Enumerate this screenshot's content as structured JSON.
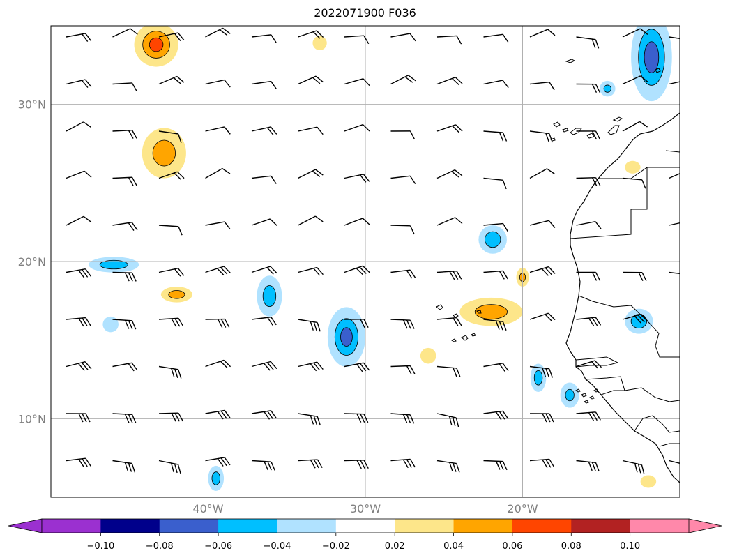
{
  "title": "2022071900 F036",
  "colors": {
    "grid": "#b0b0b0",
    "frame": "#000000",
    "coast": "#000000",
    "barb": "#000000",
    "label": "#808080"
  },
  "map": {
    "lon_range": [
      -50,
      -10
    ],
    "lat_range": [
      5,
      35
    ],
    "lat_ticks": [
      {
        "value": 10,
        "label": "10°N"
      },
      {
        "value": 20,
        "label": "20°N"
      },
      {
        "value": 30,
        "label": "30°N"
      }
    ],
    "lon_ticks": [
      {
        "value": -40,
        "label": "40°W"
      },
      {
        "value": -30,
        "label": "30°W"
      },
      {
        "value": -20,
        "label": "20°W"
      }
    ]
  },
  "colorbar": {
    "bounds": [
      -0.12,
      -0.1,
      -0.08,
      -0.06,
      -0.04,
      -0.02,
      0.02,
      0.04,
      0.06,
      0.08,
      0.1,
      0.12
    ],
    "colors": [
      "#9b30d0",
      "#00008b",
      "#3a5fcd",
      "#00bfff",
      "#b0e2ff",
      "#ffffff",
      "#fde68a",
      "#ffa500",
      "#ff4500",
      "#b22222",
      "#ff88aa"
    ],
    "extend": "both",
    "tick_values": [
      -0.1,
      -0.08,
      -0.06,
      -0.04,
      -0.02,
      0.02,
      0.04,
      0.06,
      0.08,
      0.1
    ],
    "tick_labels": [
      "−0.10",
      "−0.08",
      "−0.06",
      "−0.04",
      "−0.02",
      "0.02",
      "0.04",
      "0.06",
      "0.08",
      "0.10"
    ]
  },
  "chart_data": {
    "type": "heatmap",
    "title": "2022071900 F036",
    "contour_features": [
      {
        "lon": -43.3,
        "lat": 33.8,
        "sx": 1.4,
        "sy": 1.4,
        "level": 0.065
      },
      {
        "lon": -42.8,
        "lat": 26.9,
        "sx": 1.4,
        "sy": 1.6,
        "level": 0.05
      },
      {
        "lon": -42.0,
        "lat": 17.9,
        "sx": 1.0,
        "sy": 0.5,
        "level": 0.05
      },
      {
        "lon": -32.9,
        "lat": 33.9,
        "sx": 0.45,
        "sy": 0.45,
        "level": 0.04
      },
      {
        "lon": -22.0,
        "lat": 16.8,
        "sx": 2.0,
        "sy": 0.9,
        "level": 0.05
      },
      {
        "lon": -26.0,
        "lat": 14.0,
        "sx": 0.5,
        "sy": 0.5,
        "level": 0.03
      },
      {
        "lon": -20.0,
        "lat": 19.0,
        "sx": 0.4,
        "sy": 0.6,
        "level": 0.045
      },
      {
        "lon": -13.0,
        "lat": 26.0,
        "sx": 0.5,
        "sy": 0.4,
        "level": 0.03
      },
      {
        "lon": -12.0,
        "lat": 6.0,
        "sx": 0.5,
        "sy": 0.4,
        "level": 0.035
      },
      {
        "lon": -46.0,
        "lat": 19.8,
        "sx": 1.6,
        "sy": 0.5,
        "level": -0.055
      },
      {
        "lon": -46.2,
        "lat": 16.0,
        "sx": 0.5,
        "sy": 0.5,
        "level": -0.035
      },
      {
        "lon": -36.1,
        "lat": 17.8,
        "sx": 0.8,
        "sy": 1.3,
        "level": -0.05
      },
      {
        "lon": -31.2,
        "lat": 15.2,
        "sx": 1.2,
        "sy": 1.9,
        "level": -0.065
      },
      {
        "lon": -21.9,
        "lat": 21.4,
        "sx": 0.9,
        "sy": 0.9,
        "level": -0.055
      },
      {
        "lon": -19.0,
        "lat": 12.6,
        "sx": 0.5,
        "sy": 0.9,
        "level": -0.05
      },
      {
        "lon": -17.0,
        "lat": 11.5,
        "sx": 0.6,
        "sy": 0.8,
        "level": -0.045
      },
      {
        "lon": -14.6,
        "lat": 31.0,
        "sx": 0.5,
        "sy": 0.5,
        "level": -0.045
      },
      {
        "lon": -12.6,
        "lat": 16.2,
        "sx": 0.9,
        "sy": 0.8,
        "level": -0.055
      },
      {
        "lon": -11.8,
        "lat": 33.0,
        "sx": 1.3,
        "sy": 2.8,
        "level": -0.07
      },
      {
        "lon": -39.5,
        "lat": 6.2,
        "sx": 0.5,
        "sy": 0.8,
        "level": -0.05
      }
    ]
  }
}
